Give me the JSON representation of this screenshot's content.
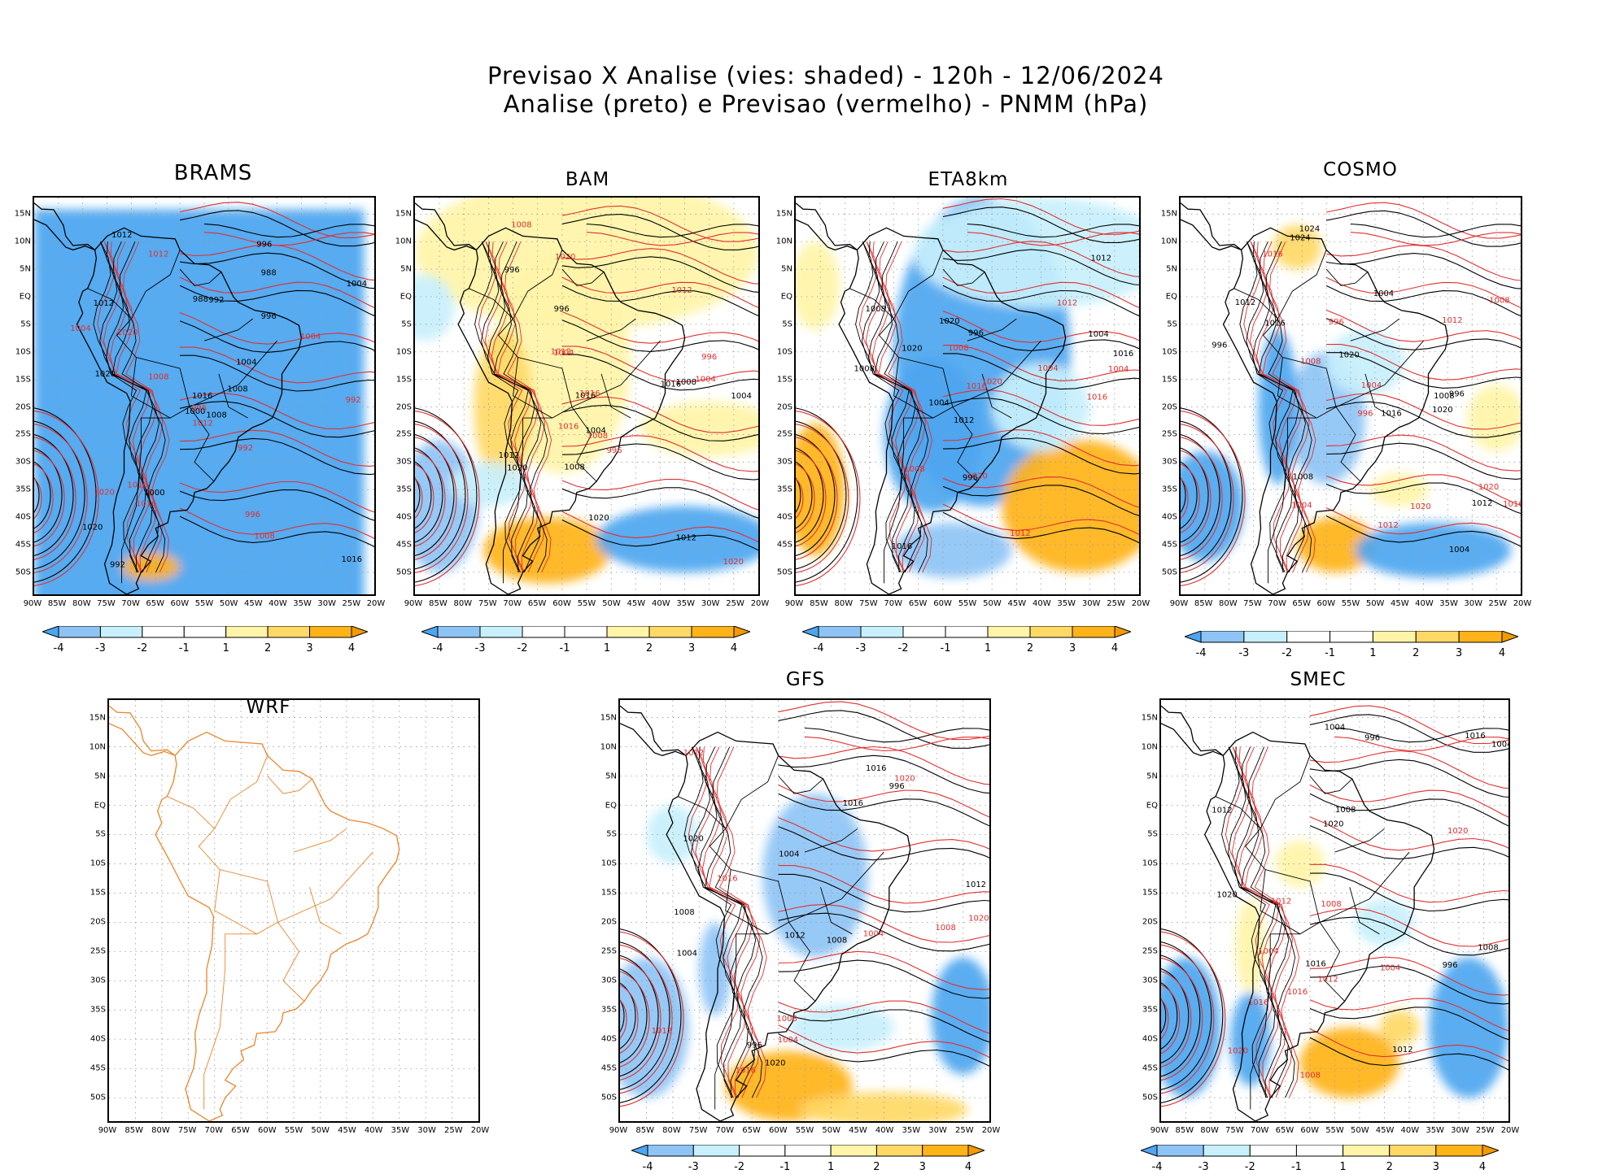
{
  "title": {
    "line1": "Previsao X Analise (vies: shaded) - 120h - 12/06/2024",
    "line2": "Analise (preto) e Previsao (vermelho) - PNMM (hPa)"
  },
  "axes": {
    "lat_labels": [
      "15N",
      "10N",
      "5N",
      "EQ",
      "5S",
      "10S",
      "15S",
      "20S",
      "25S",
      "30S",
      "35S",
      "40S",
      "45S",
      "50S"
    ],
    "lon_labels": [
      "90W",
      "85W",
      "80W",
      "75W",
      "70W",
      "65W",
      "60W",
      "55W",
      "50W",
      "45W",
      "40W",
      "35W",
      "30W",
      "25W",
      "20W"
    ]
  },
  "colorbar": {
    "labels": [
      "-4",
      "-3",
      "-2",
      "-1",
      "1",
      "2",
      "3",
      "4"
    ],
    "colors": [
      "#4da6f0",
      "#8ec4f5",
      "#c8f0fc",
      "#ffffff",
      "#ffffff",
      "#fff4a8",
      "#ffd966",
      "#ffb319",
      "#f29a00"
    ]
  },
  "colors": {
    "analysis_line": "#000000",
    "forecast_line": "#e03030",
    "wrf_coast": "#e8862a",
    "neg_bias": "#4da6f0",
    "pos_bias": "#ffb319"
  },
  "panels": [
    {
      "id": "brams",
      "name": "BRAMS",
      "isobars_black": [
        "1008",
        "1012",
        "1016",
        "1020",
        "1004",
        "1000",
        "996",
        "992",
        "988"
      ],
      "isobars_red": [
        "1008",
        "1012",
        "1016",
        "1020",
        "1004",
        "996",
        "992"
      ]
    },
    {
      "id": "bam",
      "name": "BAM",
      "isobars_black": [
        "1016",
        "1012",
        "1008",
        "1004",
        "1020",
        "996"
      ],
      "isobars_red": [
        "1012",
        "1016",
        "1020",
        "1008",
        "1004",
        "996"
      ]
    },
    {
      "id": "eta",
      "name": "ETA8km",
      "isobars_black": [
        "1016",
        "1012",
        "1008",
        "1004",
        "1020",
        "996"
      ],
      "isobars_red": [
        "1016",
        "1012",
        "1020",
        "1008",
        "1004"
      ]
    },
    {
      "id": "cosmo",
      "name": "COSMO",
      "isobars_black": [
        "1016",
        "1012",
        "1020",
        "1024",
        "1008",
        "1004",
        "996"
      ],
      "isobars_red": [
        "1016",
        "1012",
        "1020",
        "1008",
        "1004",
        "996"
      ]
    },
    {
      "id": "wrf",
      "name": "WRF",
      "isobars_black": [],
      "isobars_red": []
    },
    {
      "id": "gfs",
      "name": "GFS",
      "isobars_black": [
        "1016",
        "1012",
        "1020",
        "1008",
        "1004",
        "996"
      ],
      "isobars_red": [
        "1016",
        "1012",
        "1020",
        "1008",
        "1004"
      ]
    },
    {
      "id": "smec",
      "name": "SMEC",
      "isobars_black": [
        "1016",
        "1012",
        "1020",
        "1008",
        "1004",
        "996"
      ],
      "isobars_red": [
        "1016",
        "1012",
        "1020",
        "1008",
        "1004"
      ]
    }
  ]
}
